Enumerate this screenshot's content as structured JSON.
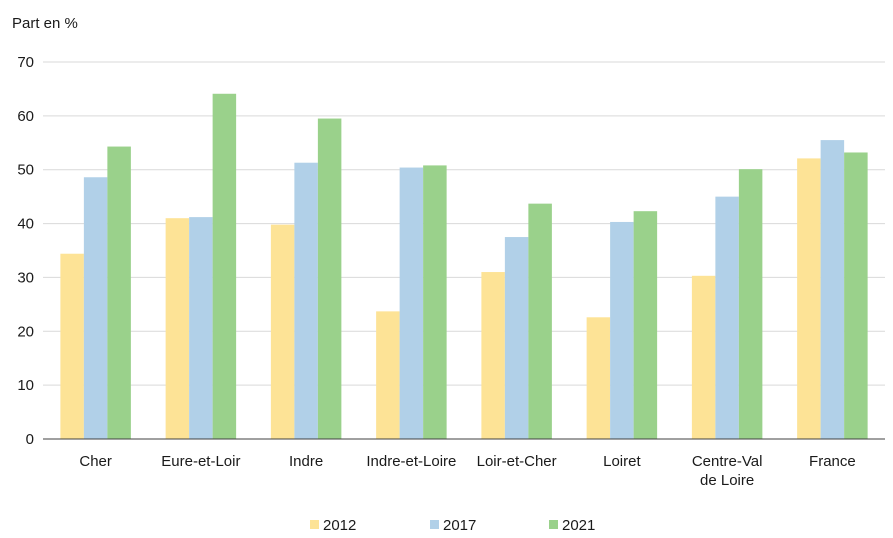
{
  "chart_data": {
    "type": "bar",
    "ylabel": "Part en %",
    "xlabel": "",
    "ylim": [
      0,
      70
    ],
    "yticks": [
      0,
      10,
      20,
      30,
      40,
      50,
      60,
      70
    ],
    "grid": true,
    "legend_position": "bottom",
    "categories": [
      [
        "Cher"
      ],
      [
        "Eure-et-Loir"
      ],
      [
        "Indre"
      ],
      [
        "Indre-et-Loire"
      ],
      [
        "Loir-et-Cher"
      ],
      [
        "Loiret"
      ],
      [
        "Centre-Val",
        "de Loire"
      ],
      [
        "France"
      ]
    ],
    "series": [
      {
        "name": "2012",
        "color": "#fde396",
        "values": [
          34.4,
          41.0,
          39.8,
          23.7,
          31.0,
          22.6,
          30.3,
          52.1
        ]
      },
      {
        "name": "2017",
        "color": "#b1d0e8",
        "values": [
          48.6,
          41.2,
          51.3,
          50.4,
          37.5,
          40.3,
          45.0,
          55.5
        ]
      },
      {
        "name": "2021",
        "color": "#9ad18b",
        "values": [
          54.3,
          64.1,
          59.5,
          50.8,
          43.7,
          42.3,
          50.1,
          53.2
        ]
      }
    ]
  }
}
